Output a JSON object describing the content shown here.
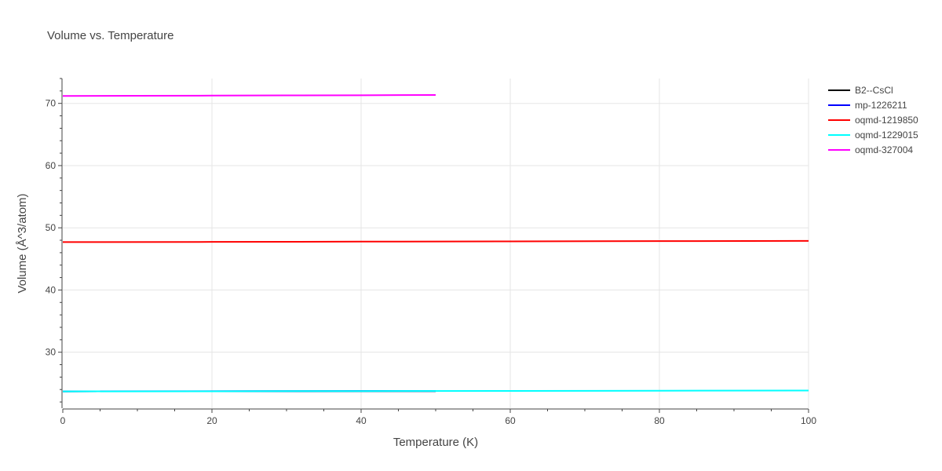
{
  "chart_data": {
    "type": "line",
    "title": "Volume vs. Temperature",
    "xlabel": "Temperature (K)",
    "ylabel": "Volume (Å^3/atom)",
    "xlim": [
      0,
      100
    ],
    "ylim": [
      21.0,
      74.0
    ],
    "x_ticks": [
      0,
      20,
      40,
      60,
      80,
      100
    ],
    "y_ticks": [
      30,
      40,
      50,
      60,
      70
    ],
    "grid": true,
    "legend_position": "right",
    "series": [
      {
        "name": "B2--CsCl",
        "color": "#000000",
        "x": [
          0,
          50
        ],
        "y": [
          23.7,
          23.75
        ]
      },
      {
        "name": "mp-1226211",
        "color": "#0000ff",
        "x": [
          0,
          50
        ],
        "y": [
          23.7,
          23.76
        ]
      },
      {
        "name": "oqmd-1219850",
        "color": "#ff0000",
        "x": [
          0,
          20,
          40,
          60,
          80,
          100
        ],
        "y": [
          47.7,
          47.73,
          47.78,
          47.82,
          47.86,
          47.9
        ]
      },
      {
        "name": "oqmd-1229015",
        "color": "#00ffff",
        "x": [
          0,
          20,
          40,
          60,
          80,
          100
        ],
        "y": [
          23.7,
          23.72,
          23.75,
          23.78,
          23.81,
          23.84
        ]
      },
      {
        "name": "oqmd-327004",
        "color": "#ff00ff",
        "x": [
          0,
          10,
          20,
          30,
          40,
          50
        ],
        "y": [
          71.2,
          71.22,
          71.25,
          71.28,
          71.31,
          71.35
        ]
      }
    ]
  }
}
